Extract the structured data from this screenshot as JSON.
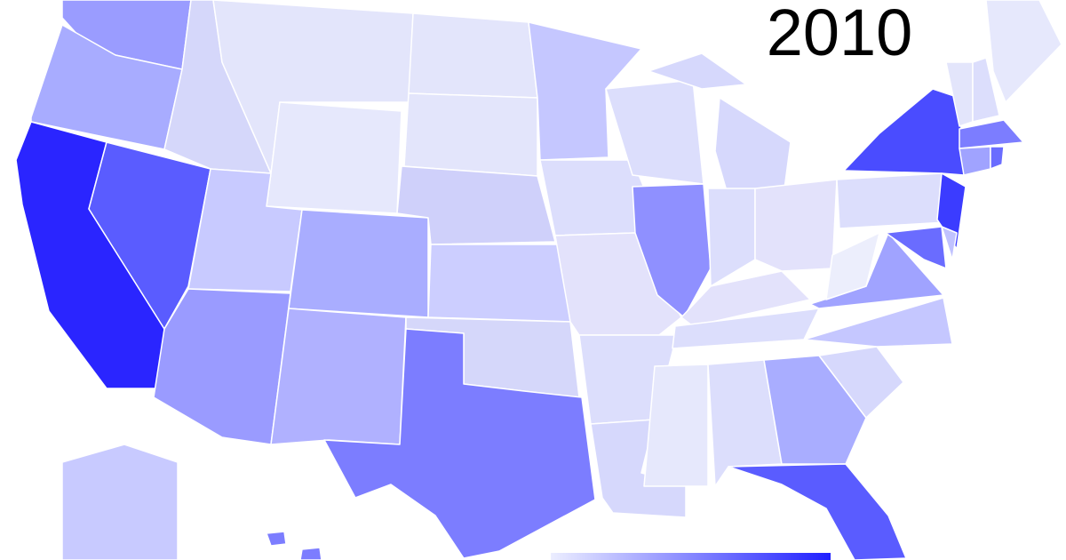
{
  "header": {
    "title": "2010"
  }
}
